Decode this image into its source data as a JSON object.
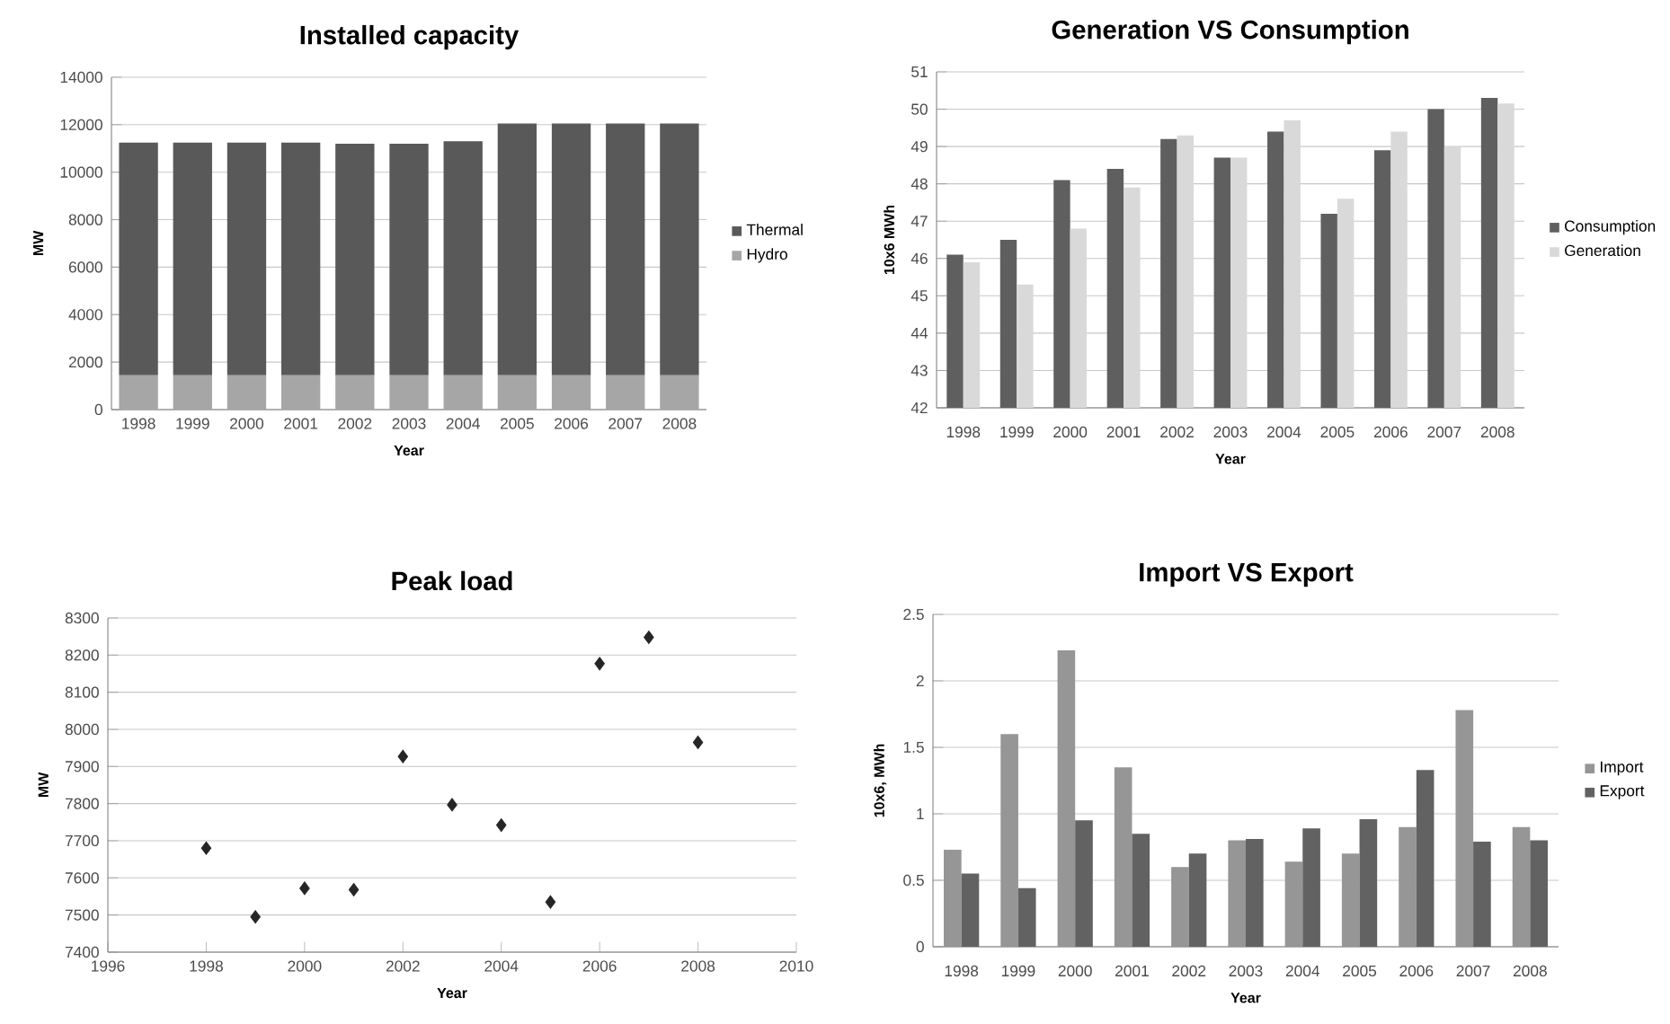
{
  "chart_data": [
    {
      "type": "bar",
      "title": "Installed capacity",
      "xlabel": "Year",
      "ylabel": "MW",
      "stacked": true,
      "grid": "y",
      "legend": "right",
      "categories": [
        "1998",
        "1999",
        "2000",
        "2001",
        "2002",
        "2003",
        "2004",
        "2005",
        "2006",
        "2007",
        "2008"
      ],
      "ylim": [
        0,
        14000
      ],
      "yticks": [
        0,
        2000,
        4000,
        6000,
        8000,
        10000,
        12000,
        14000
      ],
      "series": [
        {
          "name": "Hydro",
          "color": "#a6a6a6",
          "values": [
            1450,
            1450,
            1450,
            1450,
            1450,
            1450,
            1450,
            1450,
            1450,
            1450,
            1450
          ]
        },
        {
          "name": "Thermal",
          "color": "#595959",
          "values": [
            9800,
            9800,
            9800,
            9800,
            9750,
            9750,
            9850,
            10600,
            10600,
            10600,
            10600
          ]
        }
      ]
    },
    {
      "type": "bar",
      "title": "Generation VS Consumption",
      "xlabel": "Year",
      "ylabel": "10x6 MWh",
      "grid": "y",
      "legend": "right",
      "categories": [
        "1998",
        "1999",
        "2000",
        "2001",
        "2002",
        "2003",
        "2004",
        "2005",
        "2006",
        "2007",
        "2008"
      ],
      "ylim": [
        42,
        51
      ],
      "yticks": [
        42,
        43,
        44,
        45,
        46,
        47,
        48,
        49,
        50,
        51
      ],
      "series": [
        {
          "name": "Consumption",
          "color": "#5f5f5f",
          "values": [
            46.1,
            46.5,
            48.1,
            48.4,
            49.2,
            48.7,
            49.4,
            47.2,
            48.9,
            50.0,
            50.3
          ]
        },
        {
          "name": "Generation",
          "color": "#d9d9d9",
          "values": [
            45.9,
            45.3,
            46.8,
            47.9,
            49.3,
            48.7,
            49.7,
            47.6,
            49.4,
            49.0,
            50.15
          ]
        }
      ]
    },
    {
      "type": "scatter",
      "title": "Peak load",
      "xlabel": "Year",
      "ylabel": "MW",
      "grid": "y",
      "marker": "diamond",
      "x": [
        1998,
        1999,
        2000,
        2001,
        2002,
        2003,
        2004,
        2005,
        2006,
        2007,
        2008
      ],
      "xlim": [
        1996,
        2010
      ],
      "xticks": [
        1996,
        1998,
        2000,
        2002,
        2004,
        2006,
        2008,
        2010
      ],
      "ylim": [
        7400,
        8300
      ],
      "yticks": [
        7400,
        7500,
        7600,
        7700,
        7800,
        7900,
        8000,
        8100,
        8200,
        8300
      ],
      "series": [
        {
          "color": "#262626",
          "values": [
            7680,
            7495,
            7572,
            7568,
            7927,
            7797,
            7742,
            7535,
            8177,
            8248,
            7965
          ]
        }
      ]
    },
    {
      "type": "bar",
      "title": "Import VS Export",
      "xlabel": "Year",
      "ylabel": "10x6, MWh",
      "grid": "y",
      "legend": "right",
      "categories": [
        "1998",
        "1999",
        "2000",
        "2001",
        "2002",
        "2003",
        "2004",
        "2005",
        "2006",
        "2007",
        "2008"
      ],
      "ylim": [
        0,
        2.5
      ],
      "yticks": [
        0,
        0.5,
        1,
        1.5,
        2,
        2.5
      ],
      "series": [
        {
          "name": "Import",
          "color": "#969696",
          "values": [
            0.73,
            1.6,
            2.23,
            1.35,
            0.6,
            0.8,
            0.64,
            0.7,
            0.9,
            1.78,
            0.9
          ]
        },
        {
          "name": "Export",
          "color": "#626262",
          "values": [
            0.55,
            0.44,
            0.95,
            0.85,
            0.7,
            0.81,
            0.89,
            0.96,
            1.33,
            0.79,
            0.8
          ]
        }
      ]
    }
  ]
}
